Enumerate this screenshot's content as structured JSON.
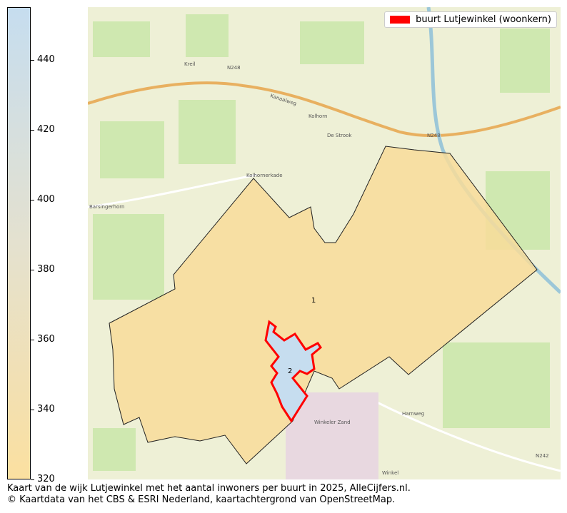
{
  "legend": {
    "label": "buurt Lutjewinkel (woonkern)",
    "color": "#ff0000"
  },
  "colorbar": {
    "min": 320,
    "max": 455,
    "ticks": [
      "440",
      "420",
      "400",
      "380",
      "360",
      "340",
      "320"
    ],
    "color_low": "#fbe0a0",
    "color_high": "#c6ddef"
  },
  "regions": [
    {
      "label": "1",
      "value": 320,
      "color": "#f8dc9a"
    },
    {
      "label": "2",
      "value": 455,
      "color": "#c6ddef",
      "highlighted": true
    }
  ],
  "map_labels": {
    "kreil": "Kreil",
    "kolhorn": "Kolhorn",
    "destrook": "De Strook",
    "barsingerhorn": "Barsingerhorn",
    "winkelerzand": "Winkeler Zand",
    "winkel": "Winkel",
    "n248": "N248",
    "n242": "N242",
    "kanaalweg": "Kanaalweg",
    "kolhornerkade": "Kolhornerkade",
    "harnweg": "Harnweg"
  },
  "caption": {
    "line1": "Kaart van de wijk Lutjewinkel met het aantal inwoners per buurt in 2025, AlleCijfers.nl.",
    "line2": "© Kaartdata van het CBS & ESRI Nederland, kaartachtergrond van OpenStreetMap."
  }
}
